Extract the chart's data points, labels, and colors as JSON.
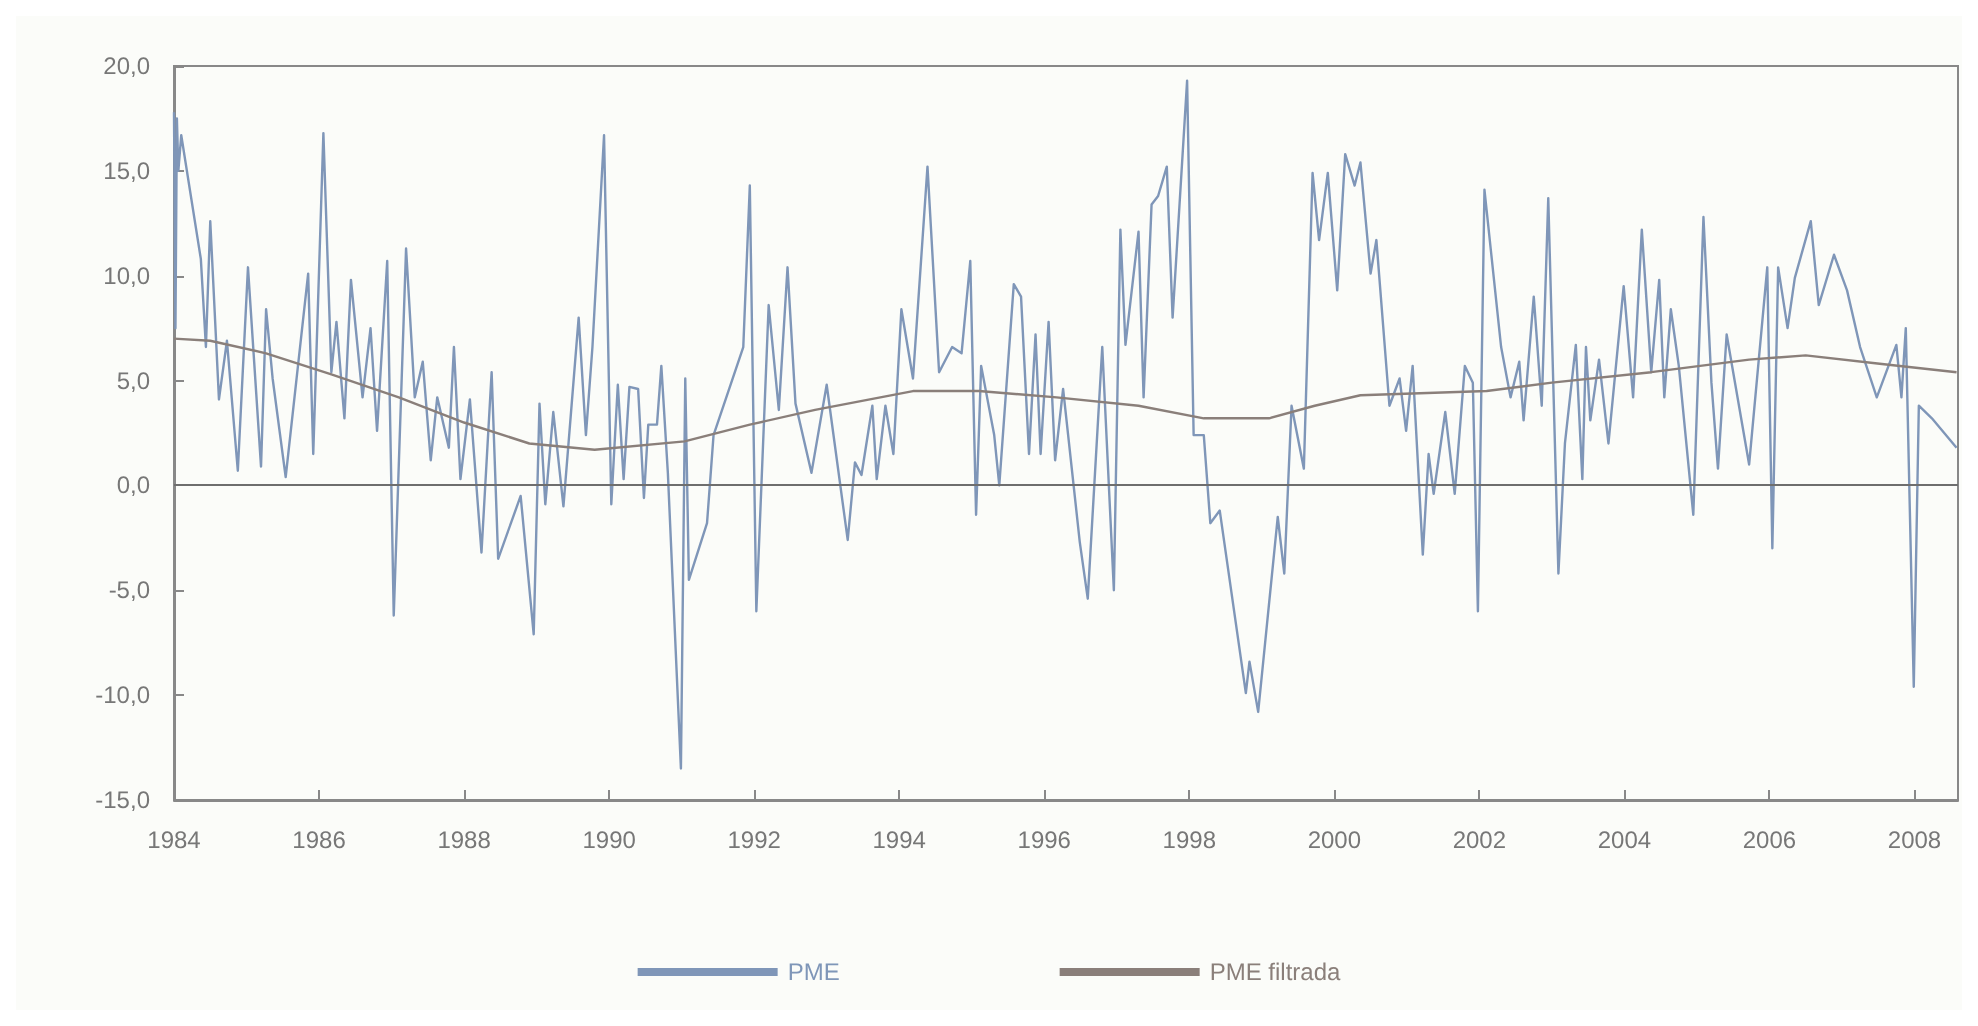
{
  "chart_data": {
    "type": "line",
    "xlim": [
      1984,
      2008.6
    ],
    "xticks": [
      1984,
      1986,
      1988,
      1990,
      1992,
      1994,
      1996,
      1998,
      2000,
      2002,
      2004,
      2006,
      2008
    ],
    "ylim": [
      -15,
      20
    ],
    "yticks": [
      {
        "value": -15,
        "label": "-15,0"
      },
      {
        "value": -10,
        "label": "-10,0"
      },
      {
        "value": -5,
        "label": "-5,0"
      },
      {
        "value": 0,
        "label": "0,0"
      },
      {
        "value": 5,
        "label": "5,0"
      },
      {
        "value": 10,
        "label": "10,0"
      },
      {
        "value": 15,
        "label": "15,0"
      },
      {
        "value": 20,
        "label": "20,0"
      }
    ],
    "grid": false,
    "legend": "bottom",
    "marker": "none",
    "line_style": "solid",
    "ref_lines": [
      {
        "axis": "y",
        "value": 0,
        "color": "#6e6e6e"
      }
    ],
    "series": [
      {
        "name": "PME",
        "color": "#7f96b8",
        "x": [
          1984.0,
          1984.02,
          1984.04,
          1984.06,
          1984.1,
          1984.37,
          1984.44,
          1984.5,
          1984.62,
          1984.73,
          1984.88,
          1985.02,
          1985.2,
          1985.27,
          1985.36,
          1985.54,
          1985.85,
          1985.92,
          1986.06,
          1986.17,
          1986.24,
          1986.35,
          1986.44,
          1986.6,
          1986.71,
          1986.8,
          1986.94,
          1987.03,
          1987.2,
          1987.32,
          1987.43,
          1987.54,
          1987.63,
          1987.79,
          1987.86,
          1987.95,
          1988.08,
          1988.24,
          1988.38,
          1988.47,
          1988.78,
          1988.96,
          1989.04,
          1989.12,
          1989.23,
          1989.37,
          1989.58,
          1989.68,
          1989.77,
          1989.93,
          1990.03,
          1990.12,
          1990.2,
          1990.28,
          1990.4,
          1990.48,
          1990.54,
          1990.66,
          1990.72,
          1990.81,
          1990.99,
          1991.05,
          1991.1,
          1991.35,
          1991.44,
          1991.85,
          1991.94,
          1992.03,
          1992.2,
          1992.34,
          1992.46,
          1992.57,
          1992.79,
          1993.0,
          1993.29,
          1993.39,
          1993.48,
          1993.63,
          1993.69,
          1993.81,
          1993.92,
          1994.03,
          1994.19,
          1994.39,
          1994.55,
          1994.73,
          1994.86,
          1994.98,
          1995.06,
          1995.13,
          1995.31,
          1995.38,
          1995.58,
          1995.68,
          1995.79,
          1995.88,
          1995.95,
          1996.06,
          1996.15,
          1996.26,
          1996.49,
          1996.6,
          1996.8,
          1996.96,
          1997.05,
          1997.12,
          1997.3,
          1997.37,
          1997.48,
          1997.57,
          1997.69,
          1997.77,
          1997.97,
          1998.06,
          1998.2,
          1998.29,
          1998.42,
          1998.78,
          1998.83,
          1998.95,
          1999.22,
          1999.31,
          1999.41,
          1999.58,
          1999.7,
          1999.79,
          1999.91,
          2000.04,
          2000.15,
          2000.28,
          2000.36,
          2000.5,
          2000.58,
          2000.76,
          2000.9,
          2000.99,
          2001.08,
          2001.22,
          2001.3,
          2001.37,
          2001.53,
          2001.66,
          2001.8,
          2001.91,
          2001.98,
          2002.07,
          2002.3,
          2002.43,
          2002.55,
          2002.61,
          2002.75,
          2002.86,
          2002.95,
          2003.09,
          2003.18,
          2003.33,
          2003.42,
          2003.47,
          2003.53,
          2003.65,
          2003.78,
          2003.99,
          2004.12,
          2004.24,
          2004.37,
          2004.48,
          2004.55,
          2004.64,
          2004.75,
          2004.95,
          2005.09,
          2005.2,
          2005.29,
          2005.41,
          2005.72,
          2005.97,
          2006.04,
          2006.12,
          2006.25,
          2006.35,
          2006.57,
          2006.68,
          2006.89,
          2007.07,
          2007.25,
          2007.48,
          2007.61,
          2007.75,
          2007.82,
          2007.88,
          2007.99,
          2008.06,
          2008.24,
          2008.58
        ],
        "values": [
          17.8,
          7.5,
          17.5,
          15.0,
          16.7,
          10.8,
          6.6,
          12.6,
          4.1,
          6.9,
          0.7,
          10.4,
          0.9,
          8.4,
          5.1,
          0.4,
          10.1,
          1.5,
          16.8,
          5.4,
          7.8,
          3.2,
          9.8,
          4.2,
          7.5,
          2.6,
          10.7,
          -6.2,
          11.3,
          4.2,
          5.9,
          1.2,
          4.2,
          1.8,
          6.6,
          0.3,
          4.1,
          -3.2,
          5.4,
          -3.5,
          -0.5,
          -7.1,
          3.9,
          -0.9,
          3.5,
          -1.0,
          8.0,
          2.4,
          6.6,
          16.7,
          -0.9,
          4.8,
          0.3,
          4.7,
          4.6,
          -0.6,
          2.9,
          2.9,
          5.7,
          0.6,
          -13.5,
          5.1,
          -4.5,
          -1.8,
          2.4,
          6.6,
          14.3,
          -6.0,
          8.6,
          3.6,
          10.4,
          3.9,
          0.6,
          4.8,
          -2.6,
          1.1,
          0.5,
          3.8,
          0.3,
          3.8,
          1.5,
          8.4,
          5.1,
          15.2,
          5.4,
          6.6,
          6.3,
          10.7,
          -1.4,
          5.7,
          2.4,
          0.0,
          9.6,
          9.0,
          1.5,
          7.2,
          1.5,
          7.8,
          1.2,
          4.6,
          -2.7,
          -5.4,
          6.6,
          -5.0,
          12.2,
          6.7,
          12.1,
          4.2,
          13.4,
          13.8,
          15.2,
          8.0,
          19.3,
          2.4,
          2.4,
          -1.8,
          -1.2,
          -9.9,
          -8.4,
          -10.8,
          -1.5,
          -4.2,
          3.8,
          0.8,
          14.9,
          11.7,
          14.9,
          9.3,
          15.8,
          14.3,
          15.4,
          10.1,
          11.7,
          3.8,
          5.1,
          2.6,
          5.7,
          -3.3,
          1.5,
          -0.4,
          3.5,
          -0.4,
          5.7,
          4.9,
          -6.0,
          14.1,
          6.6,
          4.2,
          5.9,
          3.1,
          9.0,
          3.8,
          13.7,
          -4.2,
          2.0,
          6.7,
          0.3,
          6.6,
          3.1,
          6.0,
          2.0,
          9.5,
          4.2,
          12.2,
          5.4,
          9.8,
          4.2,
          8.4,
          5.7,
          -1.4,
          12.8,
          4.9,
          0.8,
          7.2,
          1.0,
          10.4,
          -3.0,
          10.4,
          7.5,
          9.9,
          12.6,
          8.6,
          11.0,
          9.3,
          6.6,
          4.2,
          5.4,
          6.7,
          4.2,
          7.5,
          -9.6,
          3.8,
          3.2,
          1.8
        ]
      },
      {
        "name": "PME filtrada",
        "color": "#8a7f7a",
        "x": [
          1984.0,
          1984.5,
          1985.27,
          1986.17,
          1987.1,
          1988.0,
          1988.9,
          1989.8,
          1991.04,
          1991.94,
          1992.84,
          1994.19,
          1995.1,
          1996.17,
          1997.3,
          1998.2,
          1999.1,
          1999.73,
          2000.36,
          2002.1,
          2003.0,
          2004.37,
          2005.72,
          2006.5,
          2007.52,
          2008.58
        ],
        "values": [
          7.0,
          6.9,
          6.3,
          5.3,
          4.2,
          3.0,
          2.0,
          1.7,
          2.1,
          2.9,
          3.6,
          4.5,
          4.5,
          4.2,
          3.8,
          3.2,
          3.2,
          3.8,
          4.3,
          4.5,
          4.9,
          5.4,
          6.0,
          6.2,
          5.8,
          5.4
        ]
      }
    ]
  }
}
